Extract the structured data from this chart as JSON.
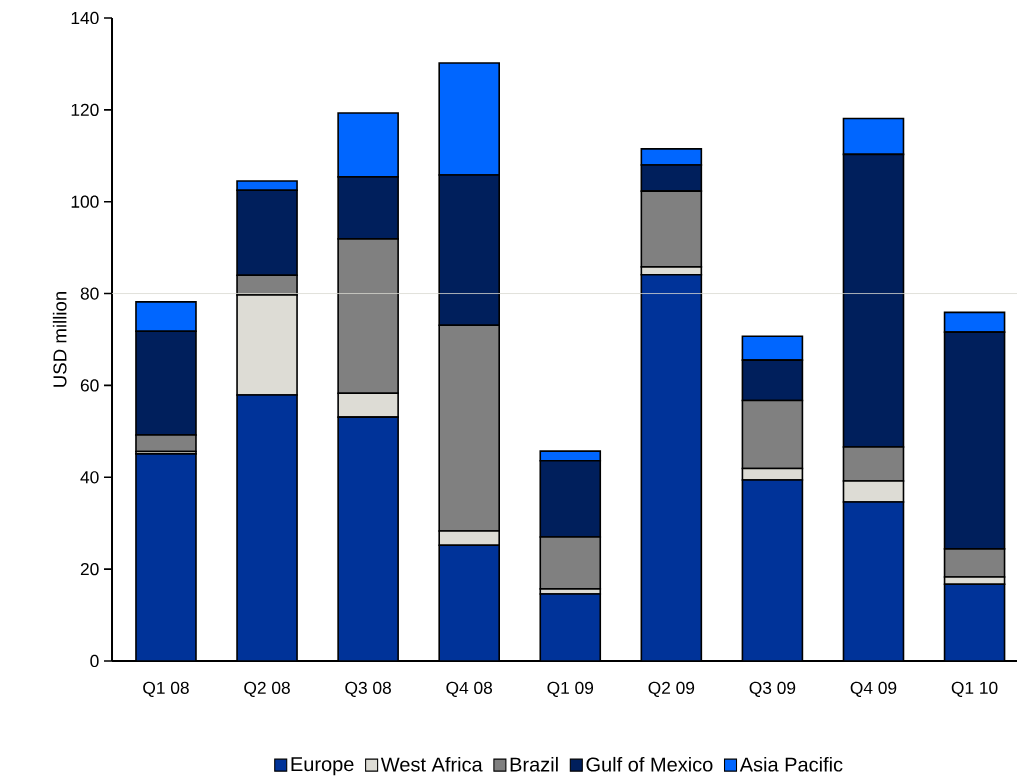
{
  "chart_data": {
    "type": "bar",
    "stacked": true,
    "ylabel": "USD million",
    "categories": [
      "Q1 08",
      "Q2 08",
      "Q3 08",
      "Q4 08",
      "Q1 09",
      "Q2 09",
      "Q3 09",
      "Q4 09",
      "Q1 10"
    ],
    "series": [
      {
        "name": "Europe",
        "color": "#003399",
        "values": [
          45.1,
          57.9,
          53.1,
          25.2,
          14.6,
          84.1,
          39.4,
          34.6,
          16.7
        ]
      },
      {
        "name": "West Africa",
        "color": "#dddcd5",
        "values": [
          0.5,
          21.8,
          5.2,
          3.1,
          1.1,
          1.7,
          2.5,
          4.6,
          1.6
        ]
      },
      {
        "name": "Brazil",
        "color": "#808080",
        "values": [
          3.6,
          4.3,
          33.6,
          44.8,
          11.3,
          16.5,
          14.8,
          7.4,
          6.1
        ]
      },
      {
        "name": "Gulf of Mexico",
        "color": "#001f5c",
        "values": [
          22.6,
          18.5,
          13.5,
          32.7,
          16.6,
          5.7,
          8.8,
          63.7,
          47.2
        ]
      },
      {
        "name": "Asia Pacific",
        "color": "#0066ff",
        "values": [
          6.4,
          2.0,
          13.9,
          24.4,
          2.1,
          3.5,
          5.2,
          7.8,
          4.3
        ]
      }
    ],
    "ylim": [
      0,
      140
    ],
    "yticks": [
      0,
      20,
      40,
      60,
      80,
      100,
      120,
      140
    ],
    "ref_lines": [
      {
        "axis": "y",
        "value": 80,
        "color": "#d9d9d0"
      }
    ],
    "legend": "bottom"
  }
}
